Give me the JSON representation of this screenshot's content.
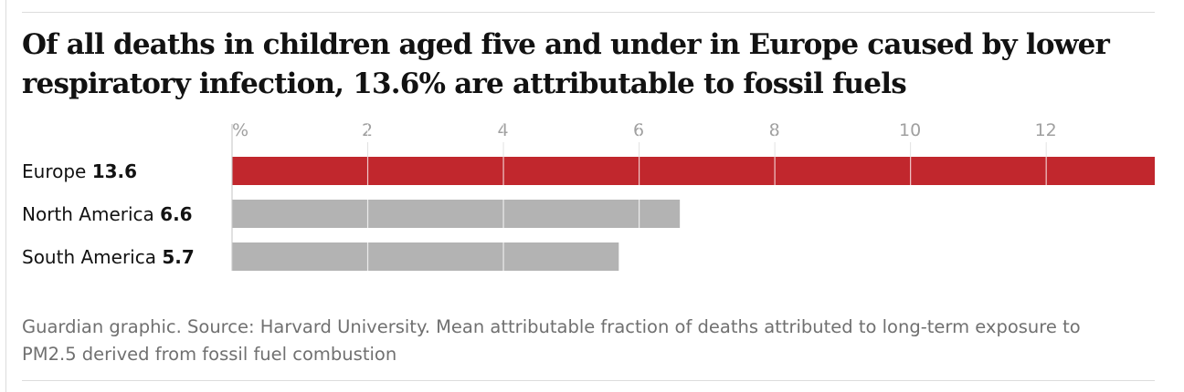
{
  "title": "Of all deaths in children aged five and under in Europe caused by lower respiratory infection, 13.6% are attributable to fossil fuels",
  "source": "Guardian graphic. Source: Harvard University. Mean attributable fraction of deaths attributed to long-term exposure to PM2.5 derived from fossil fuel combustion",
  "colors": {
    "highlight": "#c1272d",
    "other": "#b3b3b3",
    "tick_text": "#a0a0a0",
    "label_text": "#121212"
  },
  "chart_data": {
    "type": "bar",
    "orientation": "horizontal",
    "categories": [
      "Europe",
      "North America",
      "South America"
    ],
    "values": [
      13.6,
      6.6,
      5.7
    ],
    "value_labels": [
      "13.6",
      "6.6",
      "5.7"
    ],
    "highlight": "Europe",
    "unit_label": "%",
    "xlim": [
      0,
      13.6
    ],
    "xticks": [
      0,
      2,
      4,
      6,
      8,
      10,
      12
    ],
    "xtick_labels": [
      "%",
      "2",
      "4",
      "6",
      "8",
      "10",
      "12"
    ],
    "grid": true
  }
}
